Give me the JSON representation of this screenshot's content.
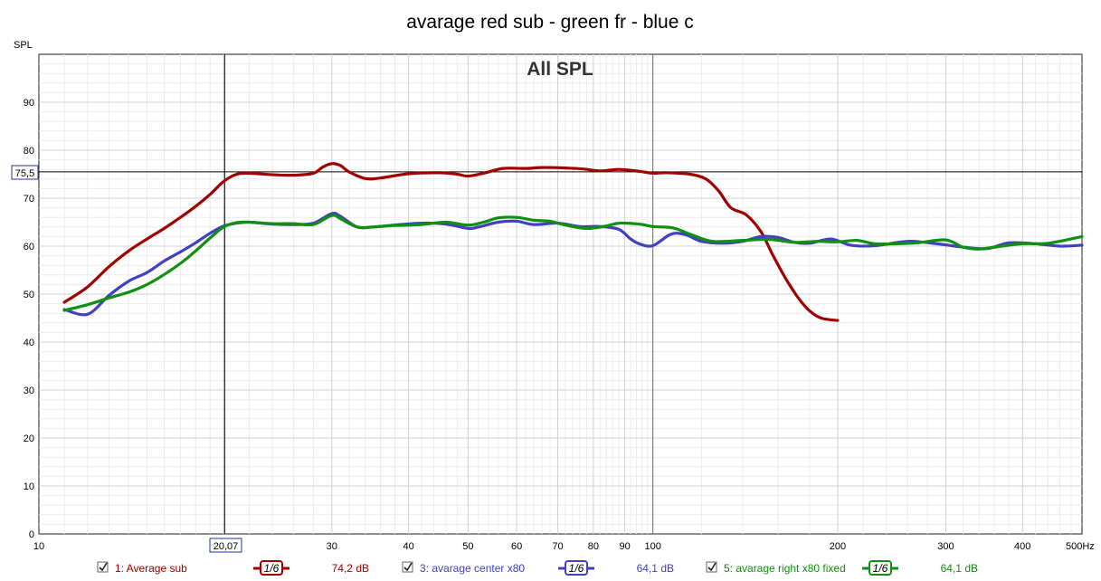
{
  "chart_data": {
    "type": "line",
    "title": "avarage red sub - green fr - blue c",
    "overlay_title": "All SPL",
    "ylabel": "SPL",
    "x_unit": "Hz",
    "x_scale": "log",
    "xlim": [
      10,
      500
    ],
    "ylim": [
      0,
      100
    ],
    "grid": true,
    "x_tick_labels": [
      "10",
      "30",
      "40",
      "50",
      "60",
      "70",
      "80",
      "90",
      "100",
      "200",
      "300",
      "400",
      "500Hz"
    ],
    "y_tick_labels": [
      "0",
      "10",
      "20",
      "30",
      "40",
      "50",
      "60",
      "70",
      "80",
      "90"
    ],
    "cursor": {
      "x": 20.07,
      "x_label": "20,07",
      "y": 75.5,
      "y_label": "75,5"
    },
    "series": [
      {
        "name": "1: Average sub",
        "color": "#a00000",
        "smoothing": "1/6",
        "readout": "74,2 dB",
        "points": [
          [
            11,
            48.3
          ],
          [
            12,
            51.5
          ],
          [
            13,
            55.7
          ],
          [
            14,
            59
          ],
          [
            15,
            61.5
          ],
          [
            16,
            63.7
          ],
          [
            17,
            66
          ],
          [
            18,
            68.3
          ],
          [
            19,
            70.8
          ],
          [
            20,
            73.5
          ],
          [
            21,
            75
          ],
          [
            22,
            75.2
          ],
          [
            24,
            74.9
          ],
          [
            26,
            74.8
          ],
          [
            28,
            75.2
          ],
          [
            29,
            76.5
          ],
          [
            30,
            77.2
          ],
          [
            31,
            76.8
          ],
          [
            32,
            75.5
          ],
          [
            34,
            74.1
          ],
          [
            36,
            74.2
          ],
          [
            40,
            75.1
          ],
          [
            45,
            75.3
          ],
          [
            48,
            75
          ],
          [
            50,
            74.6
          ],
          [
            53,
            75.2
          ],
          [
            57,
            76.2
          ],
          [
            62,
            76.2
          ],
          [
            66,
            76.4
          ],
          [
            72,
            76.3
          ],
          [
            77,
            76.1
          ],
          [
            82,
            75.7
          ],
          [
            88,
            76
          ],
          [
            95,
            75.6
          ],
          [
            100,
            75.2
          ],
          [
            105,
            75.3
          ],
          [
            115,
            75
          ],
          [
            122,
            74
          ],
          [
            128,
            71.5
          ],
          [
            134,
            68
          ],
          [
            142,
            66.5
          ],
          [
            150,
            63
          ],
          [
            157,
            58
          ],
          [
            165,
            53
          ],
          [
            173,
            49
          ],
          [
            180,
            46.5
          ],
          [
            188,
            45
          ],
          [
            200,
            44.5
          ]
        ]
      },
      {
        "name": "3: avarage center x80",
        "color": "#4040c0",
        "smoothing": "1/6",
        "readout": "64,1 dB",
        "points": [
          [
            11,
            46.8
          ],
          [
            12,
            45.8
          ],
          [
            13,
            49.7
          ],
          [
            14,
            52.7
          ],
          [
            15,
            54.5
          ],
          [
            16,
            56.9
          ],
          [
            17,
            58.8
          ],
          [
            18,
            60.7
          ],
          [
            19,
            62.7
          ],
          [
            20,
            64.2
          ],
          [
            21,
            64.8
          ],
          [
            22,
            65
          ],
          [
            24,
            64.6
          ],
          [
            26,
            64.5
          ],
          [
            28,
            64.8
          ],
          [
            30,
            66.8
          ],
          [
            31,
            66.2
          ],
          [
            33,
            64
          ],
          [
            35,
            64
          ],
          [
            38,
            64.4
          ],
          [
            42,
            64.8
          ],
          [
            46,
            64.6
          ],
          [
            50,
            63.7
          ],
          [
            52,
            64
          ],
          [
            56,
            65
          ],
          [
            60,
            65.2
          ],
          [
            64,
            64.5
          ],
          [
            70,
            64.8
          ],
          [
            76,
            64.1
          ],
          [
            82,
            64.1
          ],
          [
            88,
            63.5
          ],
          [
            92,
            61.5
          ],
          [
            95,
            60.5
          ],
          [
            100,
            60.1
          ],
          [
            107,
            62.5
          ],
          [
            113,
            62.4
          ],
          [
            120,
            61
          ],
          [
            130,
            60.6
          ],
          [
            140,
            61
          ],
          [
            150,
            62
          ],
          [
            160,
            61.8
          ],
          [
            170,
            60.8
          ],
          [
            180,
            60.6
          ],
          [
            195,
            61.5
          ],
          [
            210,
            60.2
          ],
          [
            230,
            60.1
          ],
          [
            260,
            61
          ],
          [
            290,
            60.5
          ],
          [
            320,
            59.8
          ],
          [
            350,
            59.5
          ],
          [
            380,
            60.7
          ],
          [
            420,
            60.5
          ],
          [
            460,
            60
          ],
          [
            500,
            60.2
          ]
        ]
      },
      {
        "name": "5: avarage right x80 fixed",
        "color": "#109010",
        "smoothing": "1/6",
        "readout": "64,1 dB",
        "points": [
          [
            11,
            46.6
          ],
          [
            12,
            47.8
          ],
          [
            13,
            49.2
          ],
          [
            14,
            50.4
          ],
          [
            15,
            52
          ],
          [
            16,
            54.1
          ],
          [
            17,
            56.4
          ],
          [
            18,
            59
          ],
          [
            19,
            61.7
          ],
          [
            20,
            64
          ],
          [
            21,
            64.9
          ],
          [
            22,
            65
          ],
          [
            24,
            64.7
          ],
          [
            26,
            64.7
          ],
          [
            28,
            64.5
          ],
          [
            30,
            66.4
          ],
          [
            31,
            65.7
          ],
          [
            33,
            64
          ],
          [
            35,
            64
          ],
          [
            38,
            64.3
          ],
          [
            42,
            64.5
          ],
          [
            46,
            65
          ],
          [
            50,
            64.4
          ],
          [
            53,
            65
          ],
          [
            56,
            65.9
          ],
          [
            60,
            66
          ],
          [
            64,
            65.4
          ],
          [
            68,
            65.2
          ],
          [
            72,
            64.4
          ],
          [
            78,
            63.7
          ],
          [
            84,
            64.2
          ],
          [
            88,
            64.8
          ],
          [
            95,
            64.6
          ],
          [
            100,
            64.1
          ],
          [
            108,
            63.8
          ],
          [
            115,
            62.5
          ],
          [
            125,
            61
          ],
          [
            140,
            61.2
          ],
          [
            155,
            61.4
          ],
          [
            170,
            60.8
          ],
          [
            185,
            61
          ],
          [
            200,
            60.9
          ],
          [
            215,
            61.2
          ],
          [
            230,
            60.5
          ],
          [
            250,
            60.5
          ],
          [
            270,
            60.7
          ],
          [
            300,
            61.3
          ],
          [
            320,
            59.8
          ],
          [
            340,
            59.4
          ],
          [
            370,
            60
          ],
          [
            400,
            60.5
          ],
          [
            440,
            60.6
          ],
          [
            500,
            62
          ]
        ]
      }
    ]
  }
}
